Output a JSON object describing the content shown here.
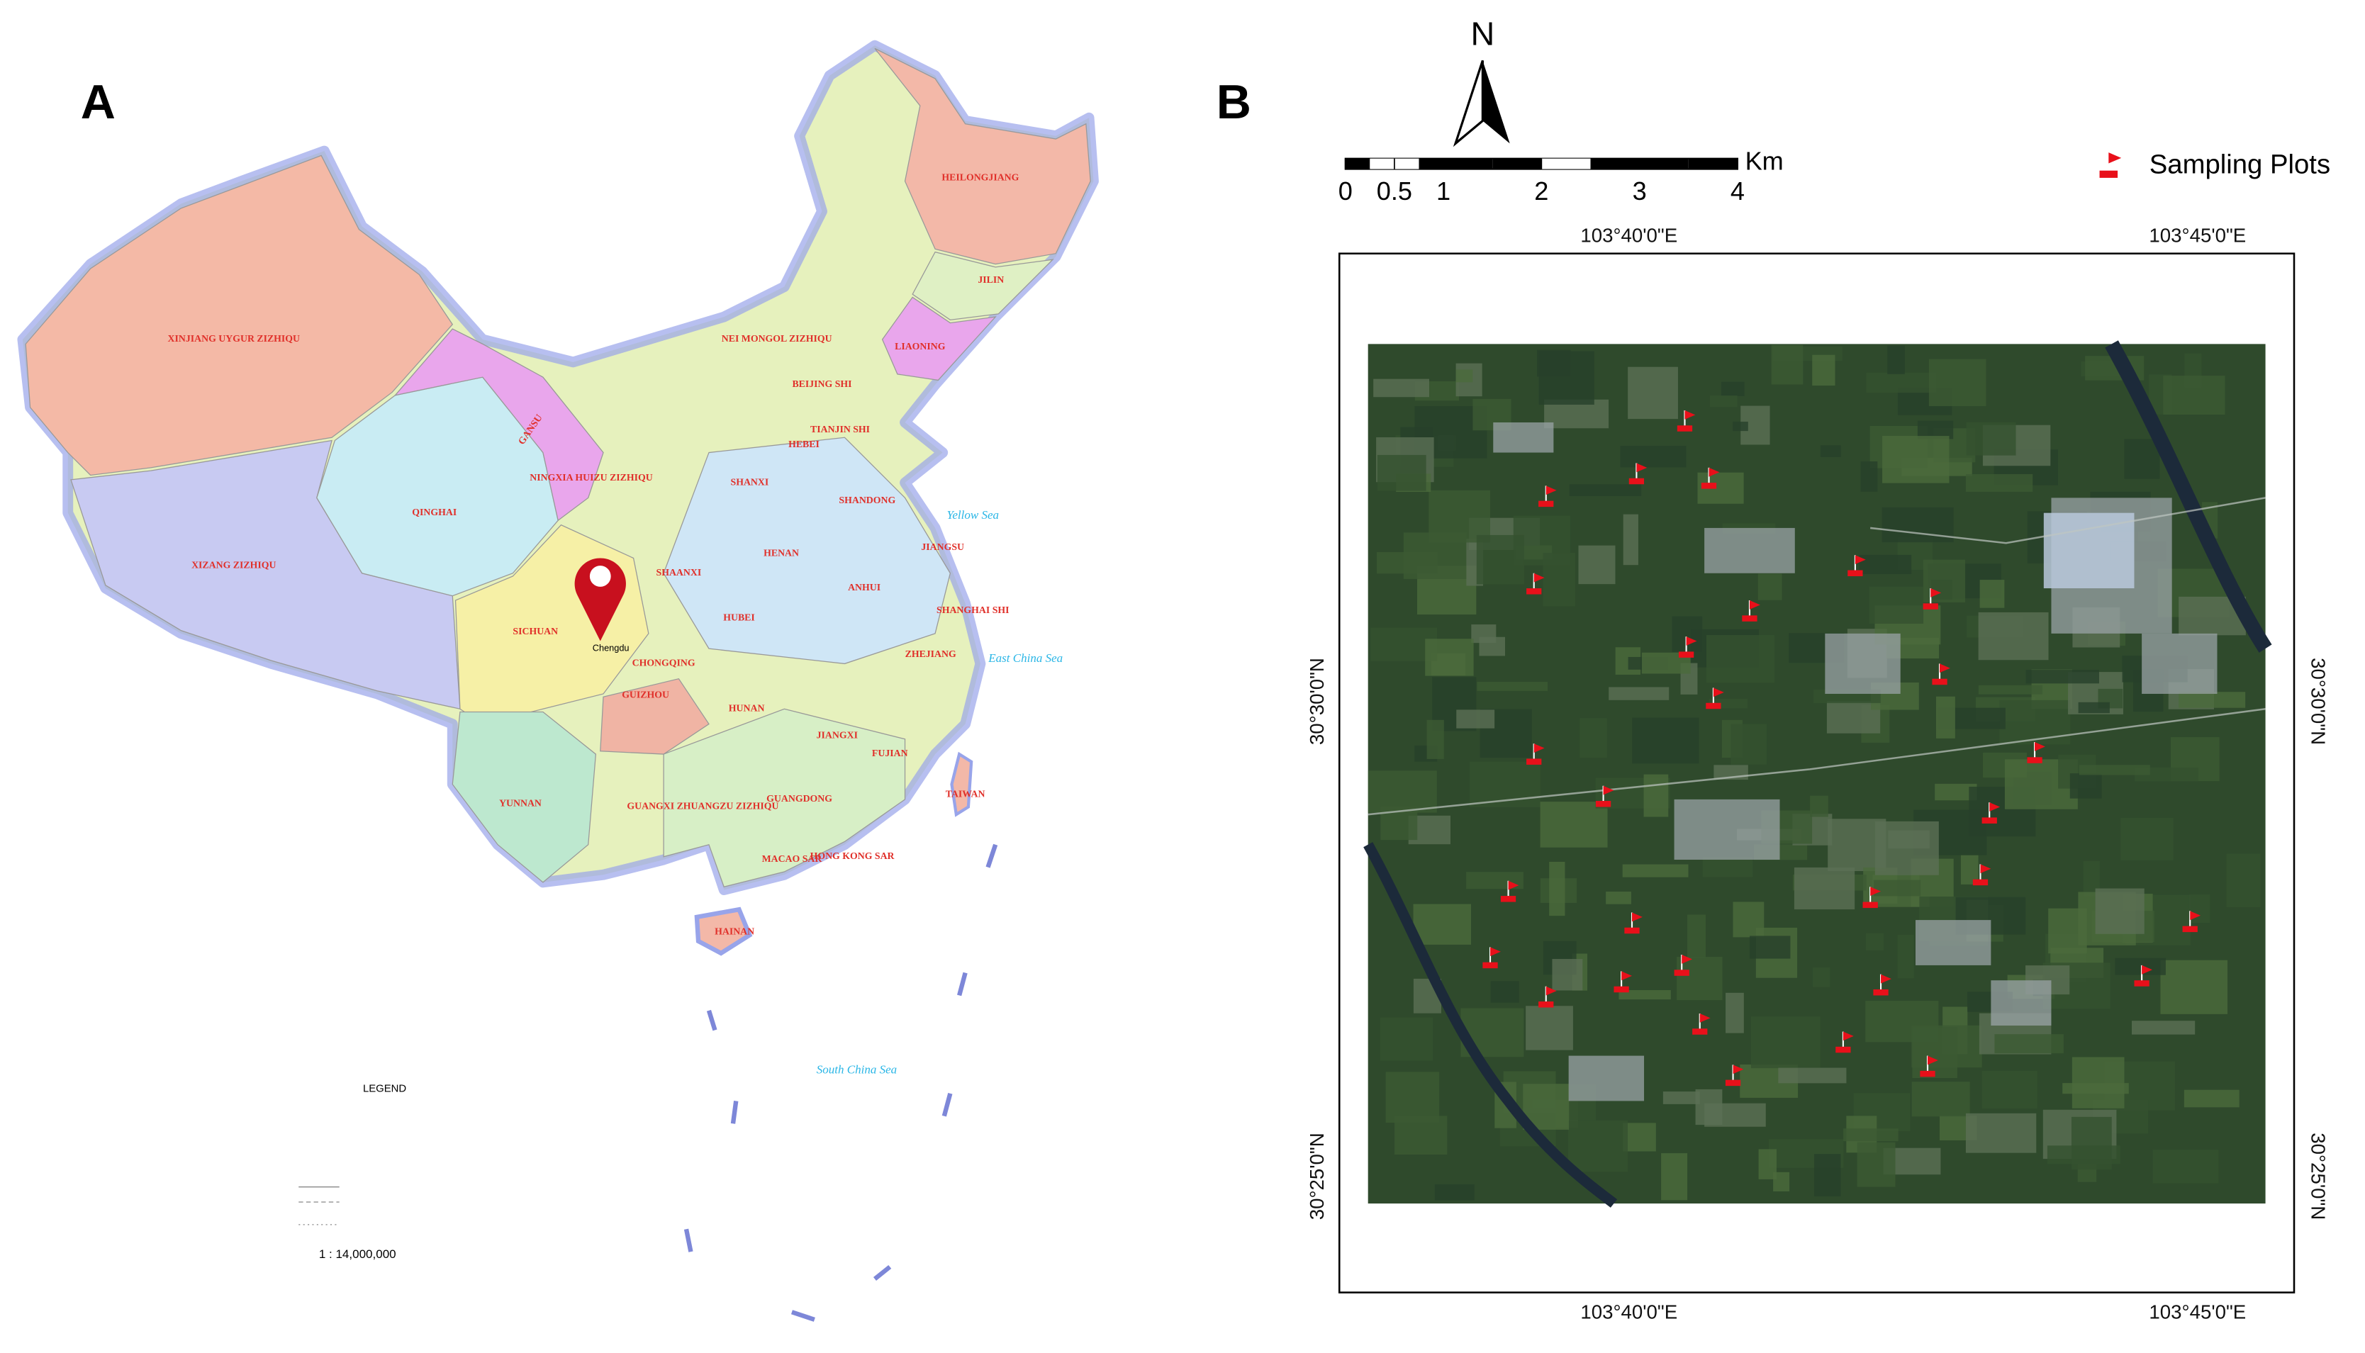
{
  "panel_a": {
    "label": "A",
    "regions": [
      "XINJIANG UYGUR ZIZHIQU",
      "XIZANG ZIZHIQU",
      "QINGHAI",
      "GANSU",
      "NEI MONGOL ZIZHIQU",
      "HEILONGJIANG",
      "JILIN",
      "LIAONING",
      "BEIJING SHI",
      "TIANJIN SHI",
      "HEBEI",
      "SHANXI",
      "SHANDONG",
      "NINGXIA HUIZU ZIZHIQU",
      "SHAANXI",
      "HENAN",
      "JIANGSU",
      "ANHUI",
      "SHANGHAI SHI",
      "HUBEI",
      "SICHUAN",
      "CHONGQING",
      "ZHEJIANG",
      "HUNAN",
      "JIANGXI",
      "GUIZHOU",
      "FUJIAN",
      "YUNNAN",
      "GUANGXI ZHUANGZU ZIZHIQU",
      "GUANGDONG",
      "TAIWAN",
      "HONG KONG SAR",
      "MACAO SAR",
      "HAINAN"
    ],
    "seas": [
      "Yellow Sea",
      "East China Sea",
      "South China Sea"
    ],
    "cities": [
      "Chengdu"
    ],
    "legend": {
      "title": "LEGEND",
      "scale": "1 : 14,000,000"
    }
  },
  "panel_b": {
    "label": "B",
    "north": "N",
    "scale_bar": {
      "unit": "Km",
      "ticks": [
        0,
        0.5,
        1,
        2,
        3,
        4
      ]
    },
    "legend": "Sampling Plots",
    "top_lon": [
      "103°40'0\"E",
      "103°45'0\"E"
    ],
    "bottom_lon": [
      "103°40'0\"E",
      "103°45'0\"E"
    ],
    "left_lat": [
      "30°30'0\"N",
      "30°25'0\"N"
    ],
    "right_lat": [
      "30°30'0\"N",
      "30°25'0\"N"
    ]
  }
}
